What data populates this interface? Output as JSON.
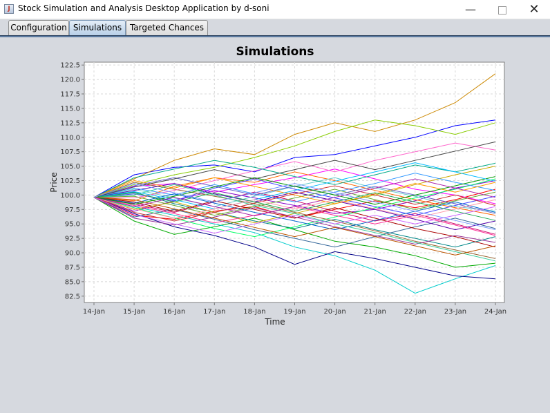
{
  "window": {
    "title": "Stock Simulation and Analysis Desktop Application by d-soni",
    "minimize_glyph": "—",
    "close_glyph": "✕"
  },
  "tabs": [
    {
      "label": "Configuration",
      "active": false
    },
    {
      "label": "Simulations",
      "active": true
    },
    {
      "label": "Targeted Chances",
      "active": false
    }
  ],
  "chart_data": {
    "type": "line",
    "title": "Simulations",
    "xlabel": "Time",
    "ylabel": "Price",
    "categories": [
      "14-Jan",
      "15-Jan",
      "16-Jan",
      "17-Jan",
      "18-Jan",
      "19-Jan",
      "20-Jan",
      "21-Jan",
      "22-Jan",
      "23-Jan",
      "24-Jan"
    ],
    "yticks": [
      "82.5",
      "85.0",
      "87.5",
      "90.0",
      "92.5",
      "95.0",
      "97.5",
      "100.0",
      "102.5",
      "105.0",
      "107.5",
      "110.0",
      "112.5",
      "115.0",
      "117.5",
      "120.0",
      "122.5"
    ],
    "ylim": [
      81.4,
      123.0
    ],
    "grid": true,
    "legend": "none",
    "start_value": 99.6,
    "series": [
      {
        "values": [
          99.6,
          96.5,
          95.8,
          97.2,
          98.0,
          96.0,
          97.5,
          99.0,
          97.8,
          99.2,
          101.0
        ]
      },
      {
        "values": [
          99.6,
          103.5,
          104.8,
          105.2,
          104.0,
          106.5,
          107.0,
          108.5,
          110.0,
          112.0,
          113.0
        ]
      },
      {
        "values": [
          99.6,
          95.5,
          93.2,
          94.5,
          96.0,
          94.0,
          92.0,
          91.0,
          89.5,
          87.5,
          88.2
        ]
      },
      {
        "values": [
          99.6,
          101.5,
          102.0,
          100.5,
          101.8,
          103.0,
          104.5,
          102.8,
          101.0,
          100.0,
          98.5
        ]
      },
      {
        "values": [
          99.6,
          98.0,
          96.5,
          95.0,
          93.5,
          91.0,
          89.5,
          87.0,
          83.0,
          85.5,
          87.8
        ]
      },
      {
        "values": [
          99.6,
          102.8,
          106.0,
          108.0,
          107.0,
          110.5,
          112.5,
          111.0,
          113.0,
          116.0,
          121.0
        ]
      },
      {
        "values": [
          99.6,
          97.2,
          99.0,
          100.8,
          99.5,
          98.2,
          96.8,
          97.5,
          99.0,
          101.2,
          102.5
        ]
      },
      {
        "values": [
          99.6,
          100.5,
          98.5,
          97.0,
          95.5,
          94.2,
          95.8,
          94.0,
          92.5,
          91.0,
          92.8
        ]
      },
      {
        "values": [
          99.6,
          99.0,
          101.5,
          103.0,
          102.2,
          104.0,
          102.5,
          100.8,
          99.2,
          97.8,
          96.5
        ]
      },
      {
        "values": [
          99.6,
          96.8,
          94.5,
          93.0,
          91.0,
          88.0,
          90.2,
          89.0,
          87.5,
          86.0,
          85.5
        ]
      },
      {
        "values": [
          99.6,
          101.8,
          103.5,
          104.8,
          106.5,
          108.5,
          111.0,
          113.0,
          112.0,
          110.5,
          112.5
        ]
      },
      {
        "values": [
          99.6,
          98.5,
          97.0,
          98.8,
          100.5,
          99.0,
          97.2,
          95.5,
          96.8,
          95.0,
          93.2
        ]
      },
      {
        "values": [
          99.6,
          100.2,
          99.0,
          101.2,
          102.8,
          101.0,
          99.5,
          98.0,
          96.5,
          98.2,
          99.8
        ]
      },
      {
        "values": [
          99.6,
          97.8,
          96.0,
          94.2,
          92.8,
          94.5,
          96.2,
          97.8,
          99.5,
          101.0,
          102.8
        ]
      },
      {
        "values": [
          99.6,
          102.2,
          101.0,
          99.8,
          98.5,
          97.0,
          95.5,
          93.8,
          92.0,
          90.5,
          89.0
        ]
      },
      {
        "values": [
          99.6,
          99.5,
          100.8,
          102.5,
          104.2,
          105.8,
          104.0,
          106.0,
          107.5,
          109.0,
          107.8
        ]
      },
      {
        "values": [
          99.6,
          96.2,
          97.5,
          95.8,
          94.0,
          92.5,
          91.0,
          92.8,
          94.5,
          96.0,
          94.2
        ]
      },
      {
        "values": [
          99.6,
          101.0,
          99.5,
          98.0,
          99.8,
          101.5,
          103.0,
          101.2,
          99.8,
          98.0,
          97.2
        ]
      },
      {
        "values": [
          99.6,
          98.8,
          97.2,
          99.0,
          97.5,
          96.0,
          97.8,
          96.0,
          94.2,
          92.8,
          91.0
        ]
      },
      {
        "values": [
          99.6,
          103.0,
          104.5,
          106.0,
          104.8,
          103.2,
          101.8,
          103.5,
          105.2,
          104.0,
          105.5
        ]
      },
      {
        "values": [
          99.6,
          97.5,
          98.8,
          97.0,
          95.2,
          96.8,
          98.5,
          100.0,
          101.8,
          103.5,
          105.0
        ]
      },
      {
        "values": [
          99.6,
          100.8,
          102.0,
          100.2,
          98.8,
          100.5,
          99.0,
          97.5,
          95.8,
          94.0,
          95.5
        ]
      },
      {
        "values": [
          99.6,
          98.2,
          96.8,
          95.2,
          96.5,
          98.0,
          96.5,
          95.0,
          96.5,
          94.8,
          93.0
        ]
      },
      {
        "values": [
          99.6,
          101.2,
          100.0,
          101.8,
          100.2,
          98.8,
          100.5,
          102.0,
          103.8,
          102.2,
          100.8
        ]
      },
      {
        "values": [
          99.6,
          99.8,
          98.2,
          96.5,
          98.0,
          99.5,
          101.0,
          99.2,
          97.5,
          99.0,
          100.5
        ]
      },
      {
        "values": [
          99.6,
          96.0,
          94.8,
          96.2,
          97.8,
          96.2,
          94.5,
          93.0,
          91.5,
          93.0,
          91.8
        ]
      },
      {
        "values": [
          99.6,
          102.5,
          101.2,
          103.0,
          101.5,
          100.0,
          98.5,
          100.2,
          102.0,
          100.5,
          102.2
        ]
      },
      {
        "values": [
          99.6,
          98.6,
          100.2,
          98.6,
          97.0,
          95.5,
          94.0,
          95.6,
          97.2,
          98.8,
          97.0
        ]
      },
      {
        "values": [
          99.6,
          100.0,
          101.8,
          100.0,
          98.2,
          96.8,
          95.0,
          93.5,
          91.8,
          90.2,
          88.6
        ]
      },
      {
        "values": [
          99.6,
          97.0,
          95.5,
          97.0,
          98.6,
          100.2,
          101.6,
          100.0,
          98.4,
          100.0,
          98.2
        ]
      },
      {
        "values": [
          99.6,
          101.6,
          103.0,
          101.5,
          100.0,
          101.6,
          100.0,
          101.5,
          100.0,
          98.5,
          96.8
        ]
      },
      {
        "values": [
          99.6,
          98.4,
          99.8,
          101.4,
          103.0,
          101.5,
          100.0,
          98.4,
          100.0,
          101.6,
          103.2
        ]
      },
      {
        "values": [
          99.6,
          96.6,
          95.0,
          93.4,
          95.0,
          96.5,
          95.0,
          96.5,
          95.0,
          96.5,
          98.0
        ]
      },
      {
        "values": [
          99.6,
          100.6,
          99.2,
          97.6,
          99.2,
          100.8,
          102.4,
          104.0,
          105.6,
          104.0,
          102.4
        ]
      },
      {
        "values": [
          99.6,
          99.2,
          97.6,
          96.0,
          94.4,
          92.8,
          94.4,
          92.8,
          91.2,
          89.6,
          91.2
        ]
      },
      {
        "values": [
          99.6,
          101.4,
          102.8,
          104.4,
          102.8,
          104.4,
          106.0,
          104.4,
          106.0,
          107.6,
          109.2
        ]
      },
      {
        "values": [
          99.6,
          97.6,
          96.0,
          97.6,
          99.2,
          97.6,
          99.2,
          97.6,
          96.0,
          97.6,
          99.2
        ]
      },
      {
        "values": [
          99.6,
          100.4,
          98.8,
          100.4,
          98.8,
          97.2,
          98.8,
          100.4,
          98.8,
          97.2,
          95.6
        ]
      },
      {
        "values": [
          99.6,
          98.0,
          99.6,
          98.0,
          96.4,
          98.0,
          99.6,
          101.2,
          102.8,
          101.2,
          99.6
        ]
      },
      {
        "values": [
          99.6,
          102.0,
          100.4,
          98.8,
          100.4,
          102.0,
          100.4,
          98.8,
          97.2,
          95.6,
          94.0
        ]
      }
    ]
  }
}
